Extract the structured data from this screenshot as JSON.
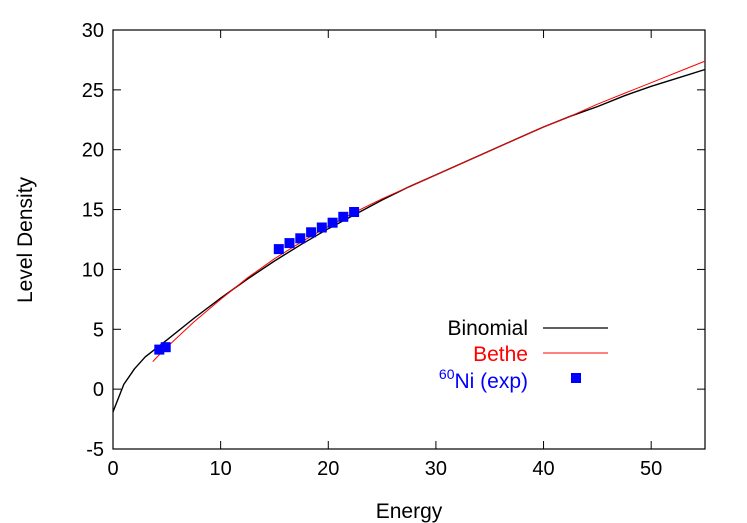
{
  "chart_data": {
    "type": "line",
    "title": "",
    "xlabel": "Energy",
    "ylabel": "Level Density",
    "xlim": [
      0,
      55
    ],
    "ylim": [
      -5,
      30
    ],
    "x_ticks": [
      0,
      10,
      20,
      30,
      40,
      50
    ],
    "y_ticks": [
      -5,
      0,
      5,
      10,
      15,
      20,
      25,
      30
    ],
    "grid": false,
    "legend_position": "right",
    "series": [
      {
        "name": "Binomial",
        "color": "#000000",
        "style": "line",
        "x": [
          0,
          1,
          2,
          3,
          4,
          5,
          7.5,
          10,
          12.5,
          15,
          17.5,
          20,
          22.5,
          25,
          27.5,
          30,
          32.5,
          35,
          37.5,
          40,
          42.5,
          45,
          47.5,
          50,
          52.5,
          55
        ],
        "y": [
          -1.9,
          0.4,
          1.7,
          2.7,
          3.4,
          4.1,
          5.9,
          7.6,
          9.2,
          10.7,
          12.1,
          13.4,
          14.6,
          15.8,
          16.9,
          17.9,
          18.9,
          19.9,
          20.9,
          21.9,
          22.8,
          23.6,
          24.5,
          25.3,
          26.0,
          26.7
        ]
      },
      {
        "name": "Bethe",
        "color": "#ff0000",
        "style": "line",
        "x": [
          3.7,
          4,
          5,
          7.5,
          10,
          12.5,
          15,
          17.5,
          20,
          22.5,
          25,
          27.5,
          30,
          32.5,
          35,
          37.5,
          40,
          42.5,
          45,
          47.5,
          50,
          52.5,
          55
        ],
        "y": [
          2.3,
          2.6,
          3.5,
          5.6,
          7.5,
          9.3,
          10.9,
          12.3,
          13.6,
          14.8,
          15.9,
          16.9,
          17.9,
          18.9,
          19.9,
          20.9,
          21.9,
          22.8,
          23.8,
          24.7,
          25.6,
          26.5,
          27.4
        ]
      },
      {
        "name": "60Ni (exp)",
        "legend_sup": "60",
        "legend_main": "Ni (exp)",
        "color": "#0000ff",
        "style": "markers",
        "x": [
          4.3,
          4.9,
          15.4,
          16.4,
          17.4,
          18.4,
          19.4,
          20.4,
          21.4,
          22.4
        ],
        "y": [
          3.3,
          3.5,
          11.7,
          12.2,
          12.6,
          13.1,
          13.5,
          13.9,
          14.4,
          14.8
        ]
      }
    ]
  }
}
